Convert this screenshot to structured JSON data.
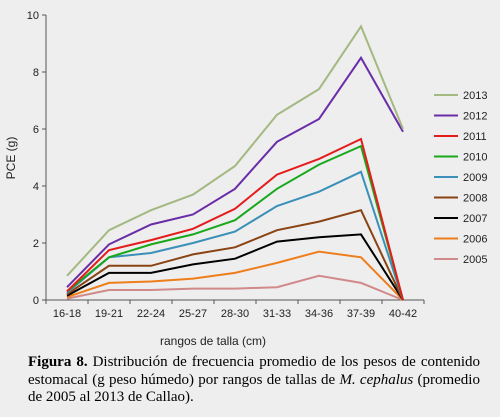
{
  "chart_data": {
    "type": "line",
    "title": "",
    "xlabel": "rangos de talla (cm)",
    "ylabel": "PCE (g)",
    "ylim": [
      0,
      10
    ],
    "yticks": [
      0,
      2,
      4,
      6,
      8,
      10
    ],
    "grid": false,
    "legend_position": "right",
    "categories": [
      "16-18",
      "19-21",
      "22-24",
      "25-27",
      "28-30",
      "31-33",
      "34-36",
      "37-39",
      "40-42"
    ],
    "series": [
      {
        "name": "2013",
        "color": "#a4b882",
        "values": [
          0.85,
          2.45,
          3.15,
          3.7,
          4.7,
          6.5,
          7.4,
          9.6,
          6.0
        ]
      },
      {
        "name": "2012",
        "color": "#6a2da8",
        "values": [
          0.45,
          1.95,
          2.65,
          3.0,
          3.9,
          5.55,
          6.35,
          8.5,
          5.9
        ]
      },
      {
        "name": "2011",
        "color": "#e41c1c",
        "values": [
          0.3,
          1.75,
          2.1,
          2.5,
          3.2,
          4.4,
          4.95,
          5.65,
          0.0
        ]
      },
      {
        "name": "2010",
        "color": "#19a81c",
        "values": [
          0.3,
          1.5,
          1.95,
          2.3,
          2.8,
          3.9,
          4.75,
          5.4,
          0.0
        ]
      },
      {
        "name": "2009",
        "color": "#3a90b8",
        "values": [
          0.25,
          1.5,
          1.65,
          2.0,
          2.4,
          3.3,
          3.8,
          4.5,
          0.0
        ]
      },
      {
        "name": "2008",
        "color": "#8a4313",
        "values": [
          0.2,
          1.2,
          1.2,
          1.6,
          1.85,
          2.45,
          2.75,
          3.15,
          0.0
        ]
      },
      {
        "name": "2007",
        "color": "#000000",
        "values": [
          0.15,
          0.95,
          0.95,
          1.25,
          1.45,
          2.05,
          2.2,
          2.3,
          0.0
        ]
      },
      {
        "name": "2006",
        "color": "#ee7d1c",
        "values": [
          0.1,
          0.6,
          0.65,
          0.75,
          0.95,
          1.3,
          1.7,
          1.5,
          0.0
        ]
      },
      {
        "name": "2005",
        "color": "#d08a8a",
        "values": [
          0.05,
          0.35,
          0.35,
          0.4,
          0.4,
          0.45,
          0.85,
          0.6,
          0.0
        ]
      }
    ]
  },
  "caption": {
    "label": "Figura 8.",
    "text_before": " Distribución de frecuencia promedio de los pesos de contenido estomacal (g peso húmedo) por rangos de tallas de ",
    "species": "M. cephalus",
    "text_after": " (promedio de 2005 al 2013 de Callao)."
  }
}
